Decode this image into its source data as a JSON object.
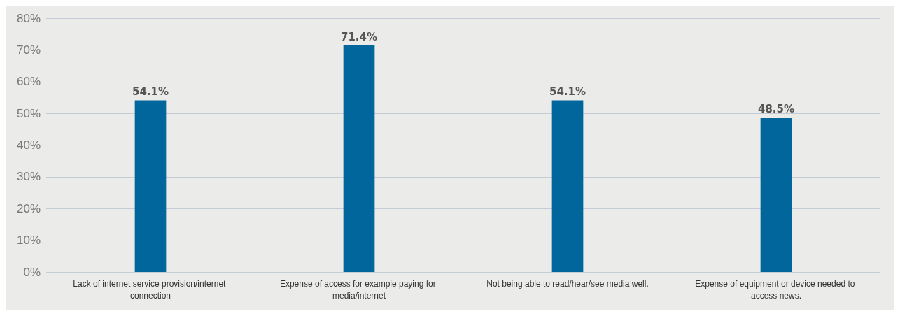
{
  "chart_data": {
    "type": "bar",
    "categories": [
      "Lack of internet service provision/internet connection",
      "Expense of access for example paying for media/internet",
      "Not being able to read/hear/see media well.",
      "Expense of equipment or device needed to access news."
    ],
    "values": [
      54.1,
      71.4,
      54.1,
      48.5
    ],
    "value_labels": [
      "54.1%",
      "71.4%",
      "54.1%",
      "48.5%"
    ],
    "color": "#00669c",
    "ylim": [
      0,
      80
    ],
    "yticks": [
      {
        "value": 0,
        "label": "0%"
      },
      {
        "value": 10,
        "label": "10%"
      },
      {
        "value": 20,
        "label": "20%"
      },
      {
        "value": 30,
        "label": "30%"
      },
      {
        "value": 40,
        "label": "40%"
      },
      {
        "value": 50,
        "label": "50%"
      },
      {
        "value": 60,
        "label": "60%"
      },
      {
        "value": 70,
        "label": "70%"
      },
      {
        "value": 80,
        "label": "80%"
      }
    ],
    "grid": "y"
  }
}
